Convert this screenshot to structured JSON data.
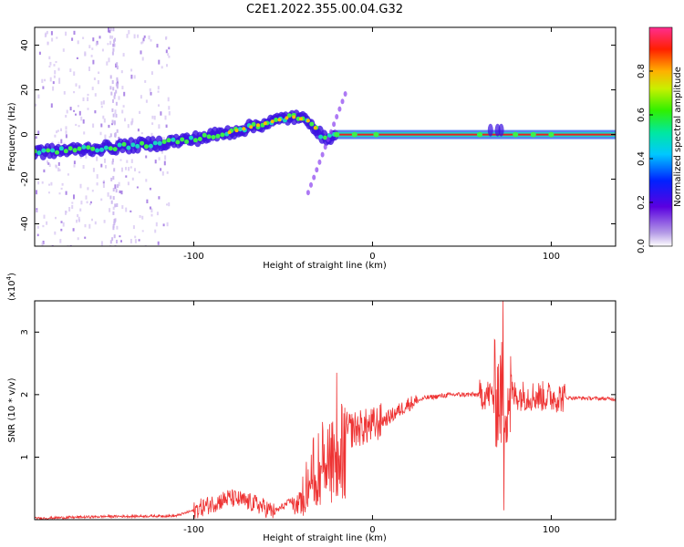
{
  "title": "C2E1.2022.355.00.04.G32",
  "chart_data": [
    {
      "type": "heatmap",
      "xlabel": "Height of straight line (km)",
      "ylabel": "Frequency (Hz)",
      "xlim": [
        -189,
        136
      ],
      "ylim": [
        -50,
        48
      ],
      "xticks": [
        "-100",
        "0",
        "100"
      ],
      "yticks": [
        "-40",
        "-20",
        "0",
        "20",
        "40"
      ],
      "colorbar": {
        "label": "Normalized spectral amplitude",
        "ticks": [
          "0.0",
          "0.2",
          "0.4",
          "0.6",
          "0.8"
        ],
        "range": [
          0,
          1
        ]
      },
      "ridge": [
        {
          "x": -189,
          "y": -8
        },
        {
          "x": -150,
          "y": -6
        },
        {
          "x": -120,
          "y": -4
        },
        {
          "x": -100,
          "y": -2
        },
        {
          "x": -80,
          "y": 1
        },
        {
          "x": -60,
          "y": 5
        },
        {
          "x": -45,
          "y": 8
        },
        {
          "x": -35,
          "y": 6
        },
        {
          "x": -30,
          "y": 1
        },
        {
          "x": -28,
          "y": -2
        },
        {
          "x": -20,
          "y": 0
        },
        {
          "x": 0,
          "y": 0
        },
        {
          "x": 136,
          "y": 0
        }
      ]
    },
    {
      "type": "line",
      "xlabel": "Height of straight line (km)",
      "ylabel": "SNR (10 * v/v)",
      "y_exponent": "(x10",
      "y_exponent_power": "4",
      "y_exponent_close": ")",
      "xlim": [
        -189,
        136
      ],
      "ylim": [
        0,
        3.5
      ],
      "xticks": [
        "-100",
        "0",
        "100"
      ],
      "yticks": [
        "1",
        "2",
        "3"
      ],
      "series": [
        {
          "color": "#ee3333",
          "envelope": [
            {
              "x": -189,
              "y": 0.02
            },
            {
              "x": -150,
              "y": 0.05
            },
            {
              "x": -110,
              "y": 0.06
            },
            {
              "x": -100,
              "y": 0.15
            },
            {
              "x": -80,
              "y": 0.35
            },
            {
              "x": -65,
              "y": 0.25
            },
            {
              "x": -55,
              "y": 0.12
            },
            {
              "x": -40,
              "y": 0.4
            },
            {
              "x": -30,
              "y": 1.1
            },
            {
              "x": -20,
              "y": 1.4
            },
            {
              "x": -10,
              "y": 1.45
            },
            {
              "x": 0,
              "y": 1.5
            },
            {
              "x": 10,
              "y": 1.65
            },
            {
              "x": 20,
              "y": 1.85
            },
            {
              "x": 30,
              "y": 1.95
            },
            {
              "x": 45,
              "y": 2.0
            },
            {
              "x": 65,
              "y": 2.0
            },
            {
              "x": 75,
              "y": 2.0
            },
            {
              "x": 110,
              "y": 1.95
            },
            {
              "x": 136,
              "y": 1.93
            }
          ]
        }
      ]
    }
  ]
}
